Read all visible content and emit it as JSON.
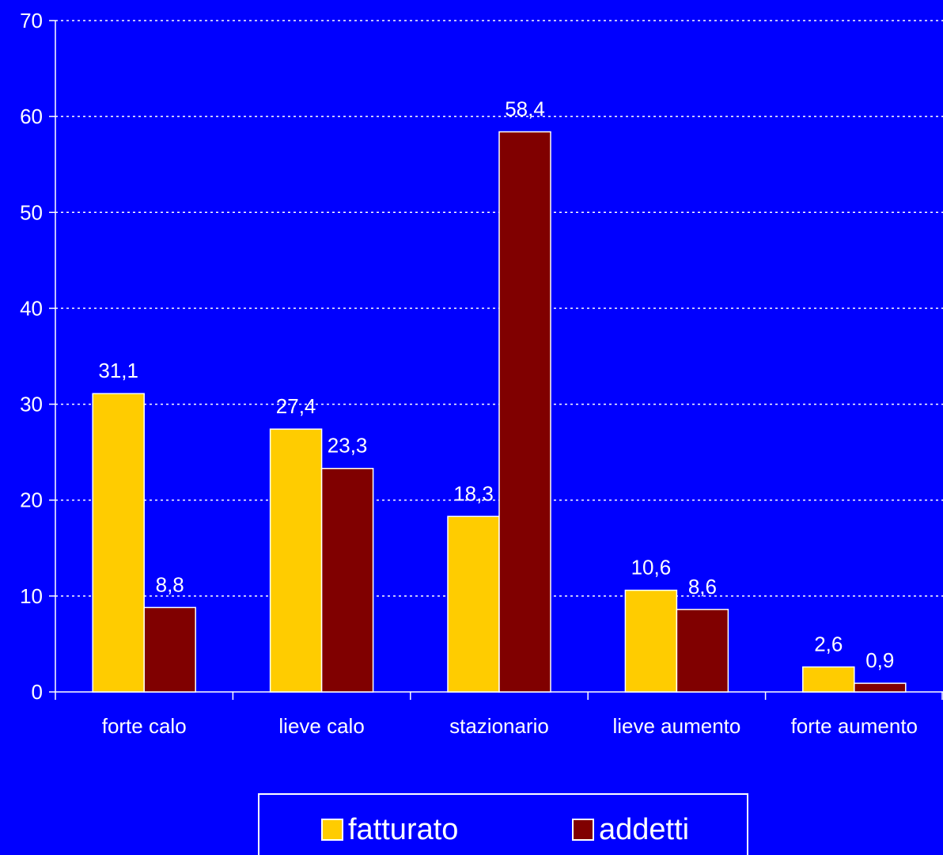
{
  "colors": {
    "background": "#0000FF",
    "axis": "#FFFFFF",
    "text": "#FFFFFF"
  },
  "chart_data": {
    "type": "bar",
    "categories": [
      "forte calo",
      "lieve calo",
      "stazionario",
      "lieve aumento",
      "forte aumento"
    ],
    "series": [
      {
        "name": "fatturato",
        "values": [
          31.1,
          27.4,
          18.3,
          10.6,
          2.6
        ],
        "labels": [
          "31,1",
          "27,4",
          "18,3",
          "10,6",
          "2,6"
        ],
        "color": "#FFCC00"
      },
      {
        "name": "addetti",
        "values": [
          8.8,
          23.3,
          58.4,
          8.6,
          0.9
        ],
        "labels": [
          "8,8",
          "23,3",
          "58,4",
          "8,6",
          "0,9"
        ],
        "color": "#800000"
      }
    ],
    "y_ticks": [
      "0",
      "10",
      "20",
      "30",
      "40",
      "50",
      "60",
      "70"
    ],
    "ylim": [
      0,
      70
    ],
    "grid": "dotted horizontal",
    "legend_position": "bottom",
    "title": "",
    "xlabel": "",
    "ylabel": ""
  }
}
